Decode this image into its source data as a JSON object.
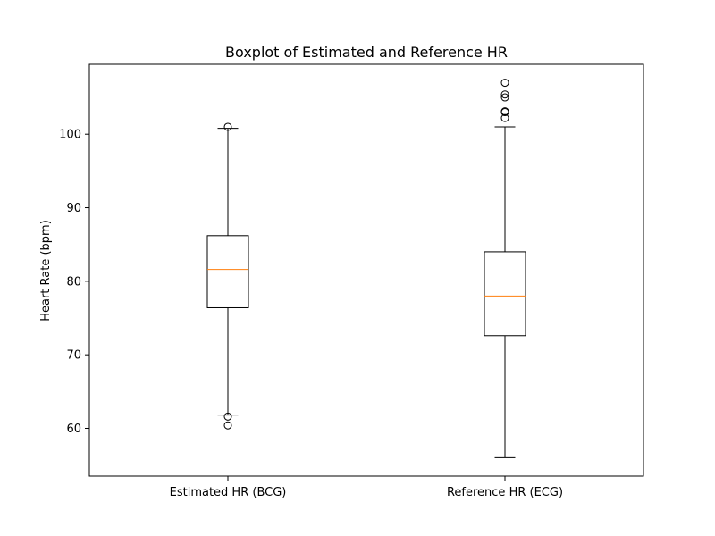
{
  "chart_data": {
    "type": "boxplot",
    "title": "Boxplot of Estimated and Reference HR",
    "xlabel": "",
    "ylabel": "Heart Rate (bpm)",
    "ylim": [
      53.5,
      109.5
    ],
    "yticks": [
      60,
      70,
      80,
      90,
      100
    ],
    "grid": false,
    "median_color": "#ff7f0e",
    "categories": [
      "Estimated HR (BCG)",
      "Reference HR (ECG)"
    ],
    "boxes": [
      {
        "label": "Estimated HR (BCG)",
        "whisker_low": 61.8,
        "q1": 76.4,
        "median": 81.6,
        "q3": 86.2,
        "whisker_high": 100.8,
        "outliers": [
          101.0,
          61.6,
          60.4
        ]
      },
      {
        "label": "Reference HR (ECG)",
        "whisker_low": 56.0,
        "q1": 72.6,
        "median": 78.0,
        "q3": 84.0,
        "whisker_high": 101.0,
        "outliers": [
          102.2,
          103.0,
          103.1,
          105.0,
          105.4,
          107.0
        ]
      }
    ]
  }
}
